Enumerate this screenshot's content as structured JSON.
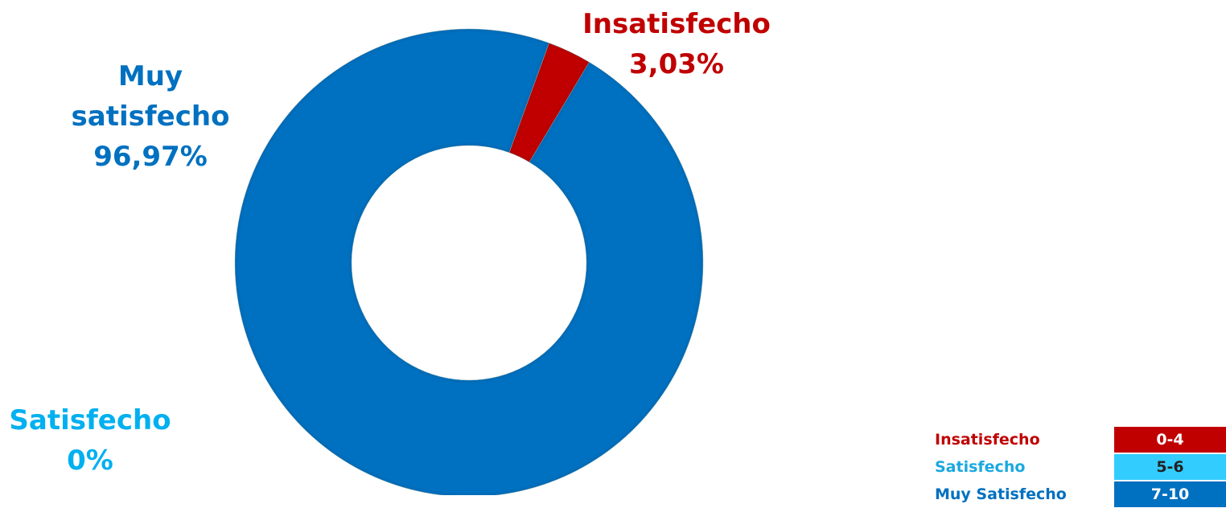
{
  "chart_data": {
    "type": "pie",
    "donut": true,
    "categories": [
      "Insatisfecho",
      "Satisfecho",
      "Muy satisfecho"
    ],
    "values": [
      3.03,
      0,
      96.97
    ],
    "value_labels": [
      "3,03%",
      "0%",
      "96,97%"
    ],
    "colors": [
      "#c00000",
      "#00b0f0",
      "#0070c0"
    ],
    "scale_legend": [
      {
        "label": "Insatisfecho",
        "range": "0-4",
        "color": "#c00000"
      },
      {
        "label": "Satisfecho",
        "range": "5-6",
        "color": "#33ccff"
      },
      {
        "label": "Muy Satisfecho",
        "range": "7-10",
        "color": "#0070c0"
      }
    ]
  }
}
